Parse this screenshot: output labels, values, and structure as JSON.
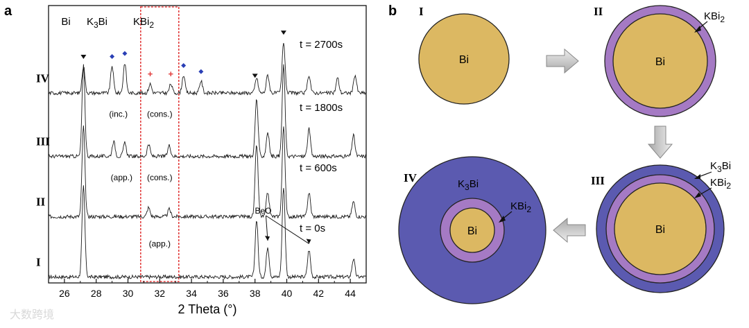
{
  "panels": {
    "a": "a",
    "b": "b"
  },
  "chart_data": {
    "type": "line",
    "title": "",
    "xlabel": "2 Theta (°)",
    "ylabel": "",
    "xlim": [
      25,
      45
    ],
    "xticks": [
      "26",
      "28",
      "30",
      "32",
      "34",
      "36",
      "38",
      "40",
      "42",
      "44"
    ],
    "phase_labels": {
      "bi": "Bi",
      "k3bi_main": "K",
      "k3bi_sub": "3",
      "k3bi_end": "Bi",
      "kbi2_main": "KBi",
      "kbi2_sub": "2"
    },
    "highlight_region": {
      "x0": 30.8,
      "x1": 33.2,
      "color": "#e23b3b"
    },
    "marker_colors": {
      "Bi": "#111111",
      "K3Bi": "#2a3fb5",
      "KBi2": "#e23b3b"
    },
    "peaks": [
      {
        "phase": "Bi",
        "x": 27.2
      },
      {
        "phase": "K3Bi",
        "x": 29.0
      },
      {
        "phase": "K3Bi",
        "x": 29.8
      },
      {
        "phase": "K3Bi",
        "x": 33.5
      },
      {
        "phase": "K3Bi",
        "x": 34.6
      },
      {
        "phase": "KBi2",
        "x": 31.4
      },
      {
        "phase": "KBi2",
        "x": 32.7
      },
      {
        "phase": "Bi",
        "x": 38.0
      },
      {
        "phase": "Bi",
        "x": 39.8
      }
    ],
    "series": [
      {
        "name": "I",
        "time": "t = 0s",
        "baseline": 0.1,
        "peaks": [
          [
            27.2,
            1.5
          ],
          [
            38.1,
            0.95
          ],
          [
            38.8,
            0.5
          ],
          [
            39.8,
            1.5
          ],
          [
            41.4,
            0.45
          ],
          [
            44.2,
            0.3
          ]
        ],
        "notes": [],
        "beo": "BeO"
      },
      {
        "name": "II",
        "time": "t = 600s",
        "baseline": 1.1,
        "peaks": [
          [
            27.2,
            1.5
          ],
          [
            31.3,
            0.15
          ],
          [
            32.6,
            0.12
          ],
          [
            38.1,
            1.2
          ],
          [
            38.8,
            0.4
          ],
          [
            39.8,
            1.5
          ],
          [
            41.4,
            0.4
          ],
          [
            44.2,
            0.25
          ]
        ],
        "notes": [
          {
            "x": 32.0,
            "text": "(app.)",
            "dy": 0.45
          }
        ]
      },
      {
        "name": "III",
        "time": "t = 1800s",
        "baseline": 2.1,
        "peaks": [
          [
            27.2,
            1.5
          ],
          [
            29.1,
            0.25
          ],
          [
            29.8,
            0.22
          ],
          [
            31.3,
            0.2
          ],
          [
            32.6,
            0.18
          ],
          [
            38.1,
            0.95
          ],
          [
            38.8,
            0.4
          ],
          [
            39.8,
            1.5
          ],
          [
            41.4,
            0.45
          ],
          [
            44.2,
            0.35
          ]
        ],
        "notes": [
          {
            "x": 29.6,
            "text": "(app.)",
            "dy": 0.35
          },
          {
            "x": 32.0,
            "text": "(cons.)",
            "dy": 0.35
          }
        ]
      },
      {
        "name": "IV",
        "time": "t = 2700s",
        "baseline": 3.15,
        "peaks": [
          [
            27.2,
            0.45
          ],
          [
            29.0,
            0.45
          ],
          [
            29.8,
            0.5
          ],
          [
            31.4,
            0.15
          ],
          [
            32.7,
            0.15
          ],
          [
            33.5,
            0.3
          ],
          [
            34.6,
            0.2
          ],
          [
            38.1,
            0.25
          ],
          [
            38.8,
            0.3
          ],
          [
            39.8,
            0.85
          ],
          [
            41.4,
            0.3
          ],
          [
            43.2,
            0.25
          ],
          [
            44.3,
            0.3
          ]
        ],
        "notes": [
          {
            "x": 29.4,
            "text": "(inc.)",
            "dy": 0.35
          },
          {
            "x": 32.0,
            "text": "(cons.)",
            "dy": 0.35
          }
        ]
      }
    ],
    "ylim": [
      0,
      4.6
    ]
  },
  "diagram": {
    "colors": {
      "bi": "#dcb862",
      "kbi2": "#a57ac4",
      "k3bi": "#5b5ab0"
    },
    "stages": {
      "I": {
        "label": "I",
        "core": "Bi"
      },
      "II": {
        "label": "II",
        "core": "Bi",
        "shell": "KBi",
        "shell_sub": "2"
      },
      "III": {
        "label": "III",
        "core": "Bi",
        "shell1": "KBi",
        "shell1_sub": "2",
        "shell2": "K",
        "shell2_sub": "3",
        "shell2_end": "Bi"
      },
      "IV": {
        "label": "IV",
        "core": "Bi",
        "shell": "KBi",
        "shell_sub": "2",
        "outer": "K",
        "outer_sub": "3",
        "outer_end": "Bi"
      }
    }
  },
  "watermark": "大数跨境"
}
